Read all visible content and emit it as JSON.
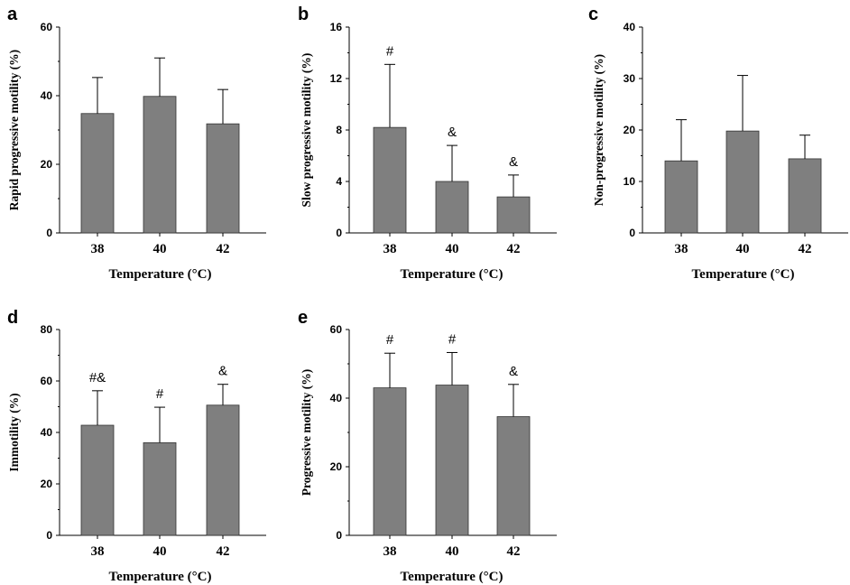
{
  "colors": {
    "bar": "#7f7f7f",
    "axis": "#000000"
  },
  "chart_data": [
    {
      "type": "bar",
      "panel": "a",
      "categories": [
        "38",
        "40",
        "42"
      ],
      "values": [
        34.8,
        39.8,
        31.8
      ],
      "errors": [
        10.5,
        11.2,
        10.0
      ],
      "annotations": [
        "",
        "",
        ""
      ],
      "ylabel": "Rapid progressive motility (%)",
      "xlabel": "Temperature (°C)",
      "ylim": [
        0,
        60
      ],
      "yticks": [
        0,
        20,
        40,
        60
      ]
    },
    {
      "type": "bar",
      "panel": "b",
      "categories": [
        "38",
        "40",
        "42"
      ],
      "values": [
        8.2,
        4.0,
        2.8
      ],
      "errors": [
        4.9,
        2.8,
        1.7
      ],
      "annotations": [
        "#",
        "&",
        "&"
      ],
      "ylabel": "Slow progressive motility (%)",
      "xlabel": "Temperature (°C)",
      "ylim": [
        0,
        16
      ],
      "yticks": [
        0,
        4,
        8,
        12,
        16
      ]
    },
    {
      "type": "bar",
      "panel": "c",
      "categories": [
        "38",
        "40",
        "42"
      ],
      "values": [
        14.0,
        19.8,
        14.4
      ],
      "errors": [
        8.0,
        10.8,
        4.6
      ],
      "annotations": [
        "",
        "",
        ""
      ],
      "ylabel": "Non-progressive motility (%)",
      "xlabel": "Temperature (°C)",
      "ylim": [
        0,
        40
      ],
      "yticks": [
        0,
        10,
        20,
        30,
        40
      ]
    },
    {
      "type": "bar",
      "panel": "d",
      "categories": [
        "38",
        "40",
        "42"
      ],
      "values": [
        42.8,
        36.0,
        50.6
      ],
      "errors": [
        13.4,
        13.8,
        8.1
      ],
      "annotations": [
        "#&",
        "#",
        "&"
      ],
      "ylabel": "Immotility (%)",
      "xlabel": "Temperature (°C)",
      "ylim": [
        0,
        80
      ],
      "yticks": [
        0,
        20,
        40,
        60,
        80
      ]
    },
    {
      "type": "bar",
      "panel": "e",
      "categories": [
        "38",
        "40",
        "42"
      ],
      "values": [
        43.0,
        43.8,
        34.6
      ],
      "errors": [
        10.1,
        9.5,
        9.4
      ],
      "annotations": [
        "#",
        "#",
        "&"
      ],
      "ylabel": "Progressive motility (%)",
      "xlabel": "Temperature (°C)",
      "ylim": [
        0,
        60
      ],
      "yticks": [
        0,
        20,
        40,
        60
      ]
    }
  ]
}
